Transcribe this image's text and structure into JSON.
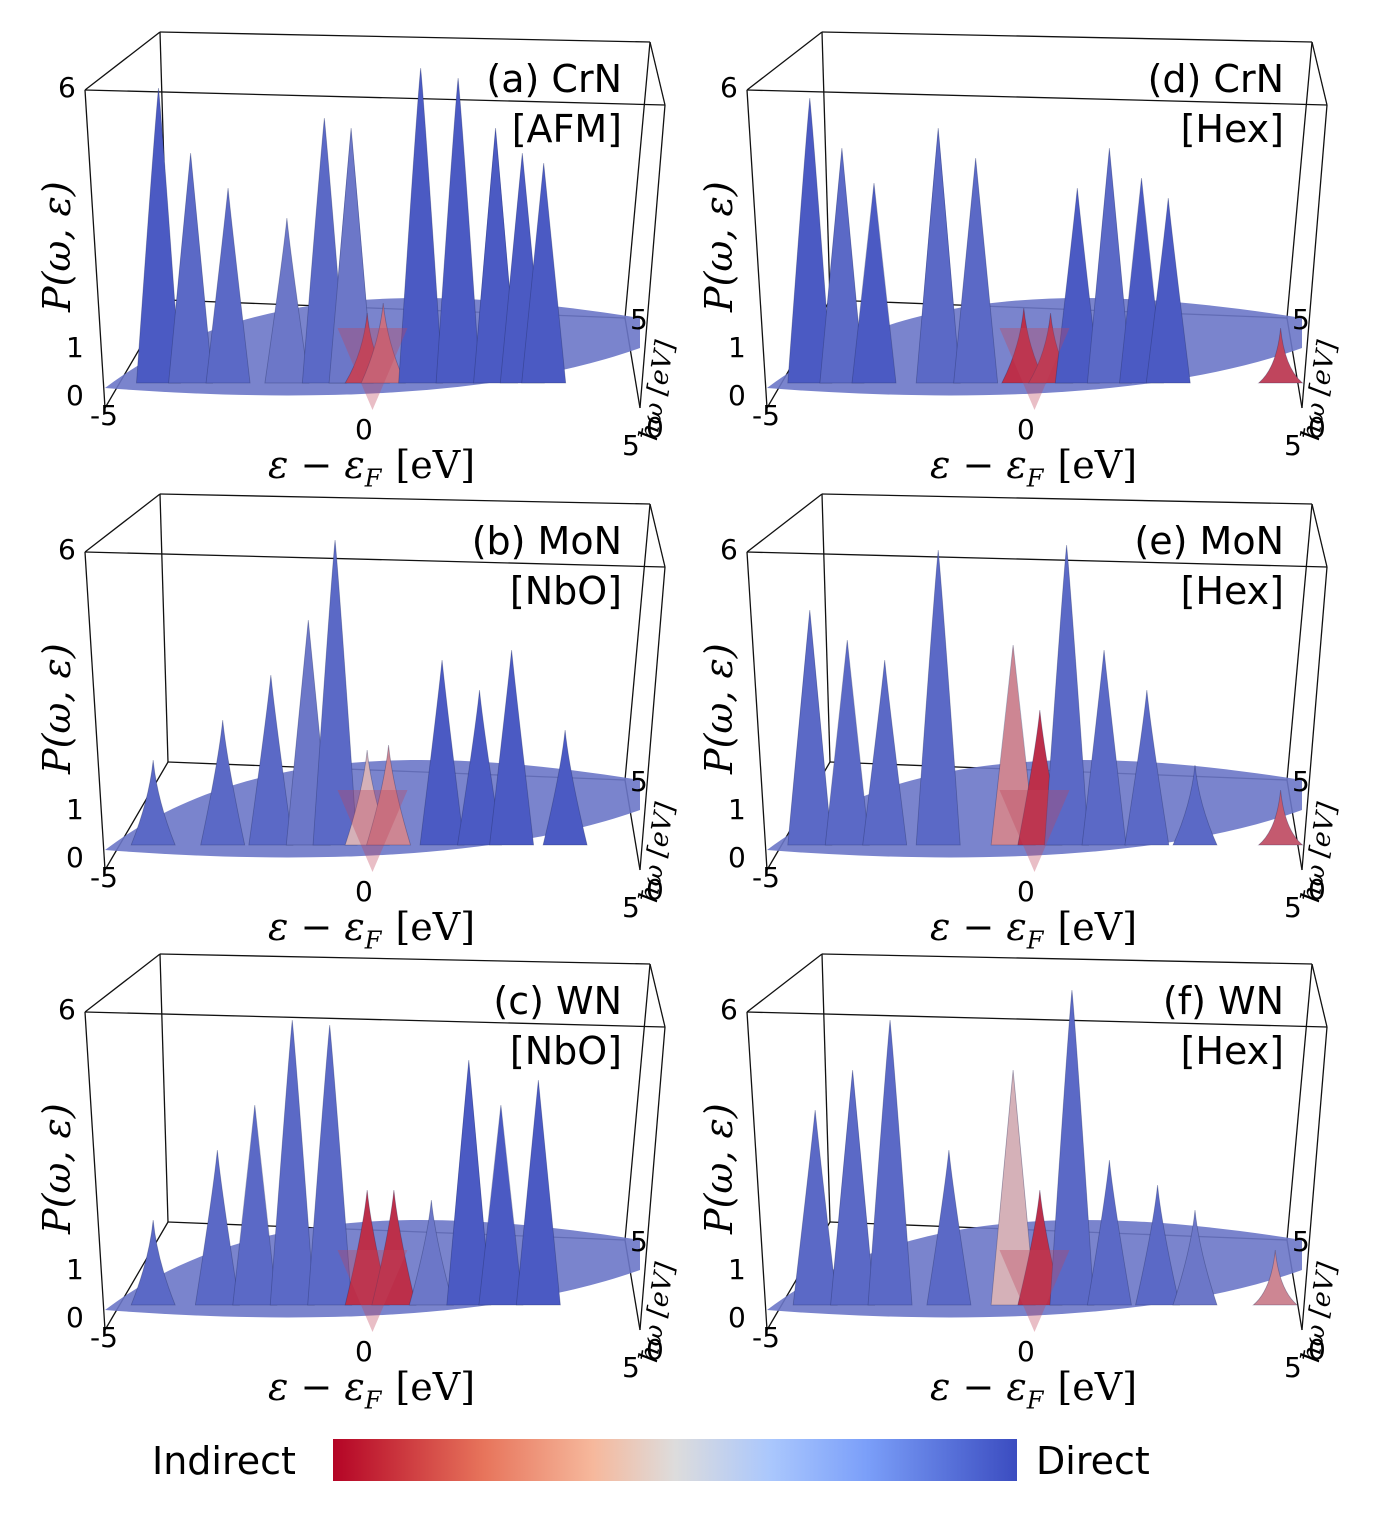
{
  "chart_data": {
    "type": "surface3d",
    "color_scale": {
      "low_label": "Indirect",
      "high_label": "Direct",
      "low_color": "#b40426",
      "mid_color": "#dddcdc",
      "high_color": "#3b4cc0"
    },
    "common_axes": {
      "x_label_main": "ε − ε",
      "x_label_sub": "F",
      "x_label_unit": "[eV]",
      "x_ticks": [
        "-5",
        "0",
        "5"
      ],
      "xlim": [
        -5,
        5
      ],
      "y_label": "P(ω, ε)",
      "y_ticks": [
        "0",
        "1",
        "6"
      ],
      "ylim": [
        0,
        6
      ],
      "z_label": "ħω [eV]",
      "z_ticks": [
        "0",
        "5"
      ],
      "zlim": [
        0,
        5
      ]
    },
    "panels": [
      {
        "id": "a",
        "title": "(a) CrN",
        "subtitle": "[AFM]",
        "peaks": [
          [
            -4.0,
            5.8,
            0.95
          ],
          [
            -3.4,
            4.5,
            0.9
          ],
          [
            -2.7,
            3.8,
            0.9
          ],
          [
            -1.6,
            3.2,
            0.85
          ],
          [
            -0.9,
            5.2,
            0.9
          ],
          [
            -0.4,
            5.0,
            0.85
          ],
          [
            -0.1,
            1.3,
            0.15
          ],
          [
            0.2,
            1.5,
            0.25
          ],
          [
            0.9,
            6.2,
            0.95
          ],
          [
            1.6,
            6.0,
            0.95
          ],
          [
            2.3,
            5.0,
            0.95
          ],
          [
            2.8,
            4.5,
            0.95
          ],
          [
            3.2,
            4.3,
            0.95
          ]
        ]
      },
      {
        "id": "d",
        "title": "(d) CrN",
        "subtitle": "[Hex]",
        "peaks": [
          [
            -4.2,
            5.6,
            0.95
          ],
          [
            -3.6,
            4.6,
            0.9
          ],
          [
            -3.0,
            3.9,
            0.95
          ],
          [
            -1.8,
            5.0,
            0.9
          ],
          [
            -1.1,
            4.4,
            0.9
          ],
          [
            -0.2,
            1.4,
            0.1
          ],
          [
            0.3,
            1.3,
            0.12
          ],
          [
            0.8,
            3.8,
            0.95
          ],
          [
            1.4,
            4.6,
            0.9
          ],
          [
            2.0,
            4.0,
            0.95
          ],
          [
            2.5,
            3.6,
            0.95
          ],
          [
            4.6,
            1.0,
            0.15
          ]
        ]
      },
      {
        "id": "b",
        "title": "(b) MoN",
        "subtitle": "[NbO]",
        "peaks": [
          [
            -4.1,
            1.6,
            0.9
          ],
          [
            -2.8,
            2.4,
            0.9
          ],
          [
            -1.9,
            3.3,
            0.9
          ],
          [
            -1.2,
            4.4,
            0.85
          ],
          [
            -0.7,
            6.0,
            0.9
          ],
          [
            -0.1,
            1.8,
            0.4
          ],
          [
            0.3,
            1.9,
            0.3
          ],
          [
            1.3,
            3.6,
            0.95
          ],
          [
            2.0,
            3.0,
            0.95
          ],
          [
            2.6,
            3.8,
            0.95
          ],
          [
            3.6,
            2.2,
            0.95
          ]
        ]
      },
      {
        "id": "e",
        "title": "(e) MoN",
        "subtitle": "[Hex]",
        "peaks": [
          [
            -4.2,
            4.6,
            0.9
          ],
          [
            -3.5,
            4.0,
            0.9
          ],
          [
            -2.8,
            3.6,
            0.9
          ],
          [
            -1.8,
            5.8,
            0.9
          ],
          [
            -0.4,
            3.9,
            0.3
          ],
          [
            0.1,
            2.6,
            0.1
          ],
          [
            0.6,
            5.9,
            0.9
          ],
          [
            1.3,
            3.8,
            0.9
          ],
          [
            2.1,
            3.0,
            0.9
          ],
          [
            3.0,
            1.5,
            0.9
          ],
          [
            4.6,
            1.0,
            0.2
          ]
        ]
      },
      {
        "id": "c",
        "title": "(c) WN",
        "subtitle": "[NbO]",
        "peaks": [
          [
            -4.1,
            1.6,
            0.9
          ],
          [
            -2.9,
            3.0,
            0.9
          ],
          [
            -2.2,
            3.9,
            0.9
          ],
          [
            -1.5,
            5.6,
            0.9
          ],
          [
            -0.8,
            5.5,
            0.9
          ],
          [
            -0.1,
            2.2,
            0.1
          ],
          [
            0.4,
            2.2,
            0.1
          ],
          [
            1.1,
            2.0,
            0.85
          ],
          [
            1.8,
            4.8,
            0.95
          ],
          [
            2.4,
            3.9,
            0.95
          ],
          [
            3.1,
            4.4,
            0.95
          ]
        ]
      },
      {
        "id": "f",
        "title": "(f) WN",
        "subtitle": "[Hex]",
        "peaks": [
          [
            -4.1,
            3.8,
            0.9
          ],
          [
            -3.4,
            4.6,
            0.9
          ],
          [
            -2.7,
            5.6,
            0.9
          ],
          [
            -1.6,
            3.0,
            0.9
          ],
          [
            -0.4,
            4.6,
            0.4
          ],
          [
            0.1,
            2.2,
            0.1
          ],
          [
            0.7,
            6.2,
            0.9
          ],
          [
            1.4,
            2.8,
            0.9
          ],
          [
            2.3,
            2.3,
            0.9
          ],
          [
            3.0,
            1.8,
            0.85
          ],
          [
            4.5,
            1.0,
            0.3
          ]
        ]
      }
    ]
  }
}
